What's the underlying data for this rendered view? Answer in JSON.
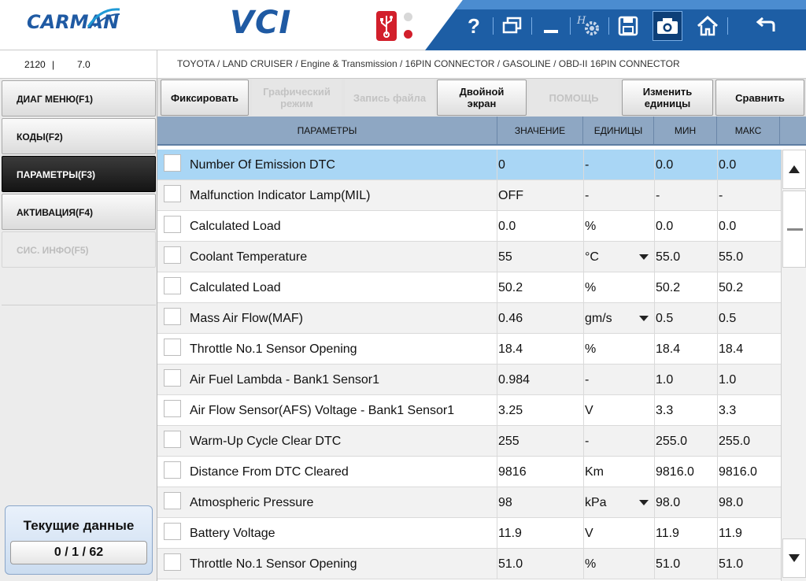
{
  "header": {
    "logo_text": "CARMAN",
    "product": "VCI",
    "icons": [
      "usb-icon",
      "help-icon",
      "window-switch-icon",
      "minimize-icon",
      "hw-settings-icon",
      "save-icon",
      "camera-icon",
      "home-icon",
      "back-icon"
    ],
    "help_label": "?"
  },
  "info": {
    "code": "2120",
    "separator": "|",
    "version": "7.0",
    "breadcrumb": "TOYOTA / LAND CRUISER / Engine & Transmission / 16PIN CONNECTOR / GASOLINE / OBD-II 16PIN CONNECTOR"
  },
  "sidebar": {
    "items": [
      {
        "label": "ДИАГ МЕНЮ(F1)",
        "state": "normal"
      },
      {
        "label": "КОДЫ(F2)",
        "state": "normal"
      },
      {
        "label": "ПАРАМЕТРЫ(F3)",
        "state": "active"
      },
      {
        "label": "АКТИВАЦИЯ(F4)",
        "state": "normal"
      },
      {
        "label": "СИС. ИНФО(F5)",
        "state": "disabled"
      }
    ],
    "current_data": {
      "title": "Текущие данные",
      "count": "0 / 1 / 62"
    }
  },
  "toolbar": {
    "fix": "Фиксировать",
    "graph_l1": "Графический",
    "graph_l2": "режим",
    "record": "Запись файла",
    "dual_l1": "Двойной",
    "dual_l2": "экран",
    "help": "ПОМОЩЬ",
    "units_l1": "Изменить",
    "units_l2": "единицы",
    "compare": "Сравнить"
  },
  "table": {
    "headers": {
      "param": "ПАРАМЕТРЫ",
      "value": "ЗНАЧЕНИЕ",
      "units": "ЕДИНИЦЫ",
      "min": "МИН",
      "max": "МАКС"
    },
    "rows": [
      {
        "name": "Number Of Emission DTC",
        "value": "0",
        "unit": "-",
        "min": "0.0",
        "max": "0.0",
        "selected": true,
        "dropdown": false
      },
      {
        "name": "Malfunction Indicator Lamp(MIL)",
        "value": "OFF",
        "unit": "-",
        "min": "-",
        "max": "-",
        "selected": false,
        "dropdown": false
      },
      {
        "name": "Calculated Load",
        "value": "0.0",
        "unit": "%",
        "min": "0.0",
        "max": "0.0",
        "selected": false,
        "dropdown": false
      },
      {
        "name": "Coolant Temperature",
        "value": "55",
        "unit": "°C",
        "min": "55.0",
        "max": "55.0",
        "selected": false,
        "dropdown": true
      },
      {
        "name": "Calculated Load",
        "value": "50.2",
        "unit": "%",
        "min": "50.2",
        "max": "50.2",
        "selected": false,
        "dropdown": false
      },
      {
        "name": "Mass Air Flow(MAF)",
        "value": "0.46",
        "unit": "gm/s",
        "min": "0.5",
        "max": "0.5",
        "selected": false,
        "dropdown": true
      },
      {
        "name": "Throttle No.1 Sensor Opening",
        "value": "18.4",
        "unit": "%",
        "min": "18.4",
        "max": "18.4",
        "selected": false,
        "dropdown": false
      },
      {
        "name": "Air Fuel Lambda - Bank1 Sensor1",
        "value": "0.984",
        "unit": "-",
        "min": "1.0",
        "max": "1.0",
        "selected": false,
        "dropdown": false
      },
      {
        "name": "Air Flow Sensor(AFS) Voltage - Bank1 Sensor1",
        "value": "3.25",
        "unit": "V",
        "min": "3.3",
        "max": "3.3",
        "selected": false,
        "dropdown": false
      },
      {
        "name": "Warm-Up Cycle Clear DTC",
        "value": "255",
        "unit": "-",
        "min": "255.0",
        "max": "255.0",
        "selected": false,
        "dropdown": false
      },
      {
        "name": "Distance From DTC Cleared",
        "value": "9816",
        "unit": "Km",
        "min": "9816.0",
        "max": "9816.0",
        "selected": false,
        "dropdown": false
      },
      {
        "name": "Atmospheric Pressure",
        "value": "98",
        "unit": "kPa",
        "min": "98.0",
        "max": "98.0",
        "selected": false,
        "dropdown": true
      },
      {
        "name": "Battery Voltage",
        "value": "11.9",
        "unit": "V",
        "min": "11.9",
        "max": "11.9",
        "selected": false,
        "dropdown": false
      },
      {
        "name": "Throttle No.1 Sensor Opening",
        "value": "51.0",
        "unit": "%",
        "min": "51.0",
        "max": "51.0",
        "selected": false,
        "dropdown": false
      }
    ]
  },
  "colors": {
    "brand_blue": "#1f5aa3",
    "toolbar_blue": "#1d5ea5",
    "selected_row": "#a9d6f5",
    "header_row": "#8ea7c3",
    "usb_red": "#d21f2b"
  }
}
